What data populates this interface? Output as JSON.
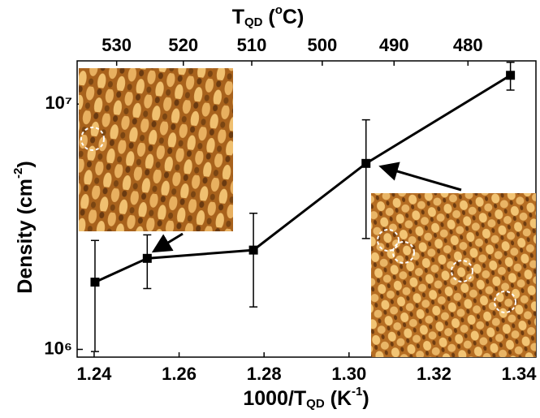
{
  "chart_data": {
    "type": "line",
    "x_label": [
      "1000/T",
      "QD",
      " (K",
      "-1",
      ")"
    ],
    "y_label": [
      "Density (cm",
      "-2",
      ")"
    ],
    "x2_label": [
      "T",
      "QD",
      " (",
      "o",
      "C)"
    ],
    "xlim": [
      1.236,
      1.344
    ],
    "xticks": [
      {
        "value": 1.24,
        "label": "1.24"
      },
      {
        "value": 1.26,
        "label": "1.26"
      },
      {
        "value": 1.28,
        "label": "1.28"
      },
      {
        "value": 1.3,
        "label": "1.30"
      },
      {
        "value": 1.32,
        "label": "1.32"
      },
      {
        "value": 1.34,
        "label": "1.34"
      }
    ],
    "x2ticks": [
      {
        "value": 1.2453,
        "label": "530"
      },
      {
        "value": 1.261,
        "label": "520"
      },
      {
        "value": 1.2771,
        "label": "510"
      },
      {
        "value": 1.2937,
        "label": "500"
      },
      {
        "value": 1.3106,
        "label": "490"
      },
      {
        "value": 1.328,
        "label": "480"
      }
    ],
    "ylim": [
      930000,
      15000000
    ],
    "yticks": [
      {
        "value": 1000000,
        "label": "10⁶"
      },
      {
        "value": 10000000,
        "label": "10⁷"
      }
    ],
    "log_y": true,
    "series": [
      {
        "color": "#000000",
        "x": [
          1.2402,
          1.2525,
          1.2775,
          1.304,
          1.338
        ],
        "values": [
          1880000,
          2350000,
          2540000,
          5730000,
          13100000
        ],
        "errors": [
          900000,
          580000,
          1050000,
          2900000,
          1700000
        ]
      }
    ]
  }
}
